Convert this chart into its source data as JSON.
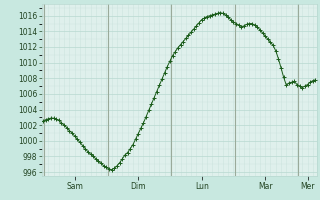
{
  "background_color": "#c8e8e0",
  "plot_bg_color": "#dff0ec",
  "line_color": "#1a5c1a",
  "marker_color": "#1a5c1a",
  "grid_color_major": "#b8d8d0",
  "grid_color_minor": "#cce4de",
  "vline_color": "#9aaa9a",
  "ylabel_color": "#224422",
  "xlabel_color": "#224422",
  "ylim": [
    995.5,
    1017.5
  ],
  "yticks": [
    996,
    998,
    1000,
    1002,
    1004,
    1006,
    1008,
    1010,
    1012,
    1014,
    1016
  ],
  "day_labels": [
    "Sam",
    "Dim",
    "Lun",
    "Mar",
    "Mer"
  ],
  "n_points": 216,
  "figsize": [
    3.2,
    2.0
  ],
  "dpi": 100,
  "y_values": [
    1002.5,
    1002.7,
    1002.8,
    1002.9,
    1002.9,
    1002.8,
    1002.6,
    1002.3,
    1002.0,
    1001.7,
    1001.3,
    1001.0,
    1000.6,
    1000.2,
    999.8,
    999.4,
    999.0,
    998.6,
    998.3,
    998.0,
    997.7,
    997.4,
    997.1,
    996.8,
    996.6,
    996.4,
    996.3,
    996.5,
    996.8,
    997.2,
    997.7,
    998.2,
    998.5,
    999.0,
    999.5,
    1000.2,
    1000.9,
    1001.6,
    1002.3,
    1003.1,
    1003.9,
    1004.7,
    1005.5,
    1006.3,
    1007.1,
    1007.9,
    1008.7,
    1009.5,
    1010.2,
    1010.9,
    1011.4,
    1011.9,
    1012.3,
    1012.7,
    1013.1,
    1013.5,
    1013.9,
    1014.3,
    1014.7,
    1015.1,
    1015.5,
    1015.7,
    1015.9,
    1016.0,
    1016.1,
    1016.2,
    1016.3,
    1016.4,
    1016.3,
    1016.1,
    1015.8,
    1015.5,
    1015.2,
    1015.0,
    1014.8,
    1014.6,
    1014.7,
    1014.9,
    1015.0,
    1015.0,
    1014.8,
    1014.6,
    1014.2,
    1013.8,
    1013.4,
    1013.0,
    1012.6,
    1012.2,
    1011.5,
    1010.5,
    1009.3,
    1008.1,
    1007.1,
    1007.4,
    1007.5,
    1007.6,
    1007.2,
    1007.0,
    1006.8,
    1007.0,
    1007.2,
    1007.5,
    1007.7,
    1007.8
  ]
}
